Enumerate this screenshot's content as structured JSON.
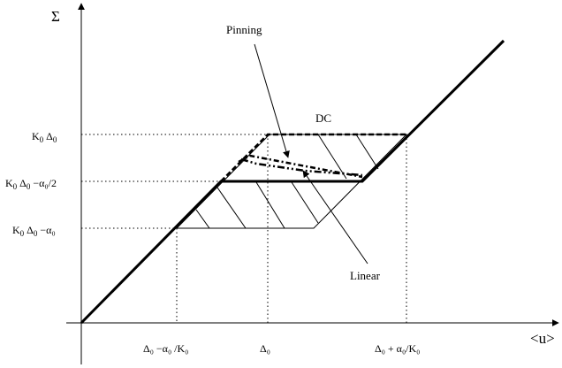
{
  "axes": {
    "y_label": "Σ",
    "x_label": "<u>"
  },
  "y_ticks": [
    {
      "main": "K",
      "sub1": "0",
      "rest": " Δ",
      "sub2": "0",
      "tail": ""
    },
    {
      "main": "K",
      "sub1": "0",
      "rest": " Δ",
      "sub2": "0",
      "tail": " −α₀/2"
    },
    {
      "main": "K",
      "sub1": "0",
      "rest": " Δ",
      "sub2": "0",
      "tail": " −α₀"
    }
  ],
  "x_ticks": {
    "left": "Δ₀ −α₀ /K₀",
    "mid": "Δ₀",
    "right": "Δ₀ + α₀/K₀"
  },
  "annotations": {
    "pinning": "Pinning",
    "dc": "DC",
    "linear": "Linear"
  }
}
